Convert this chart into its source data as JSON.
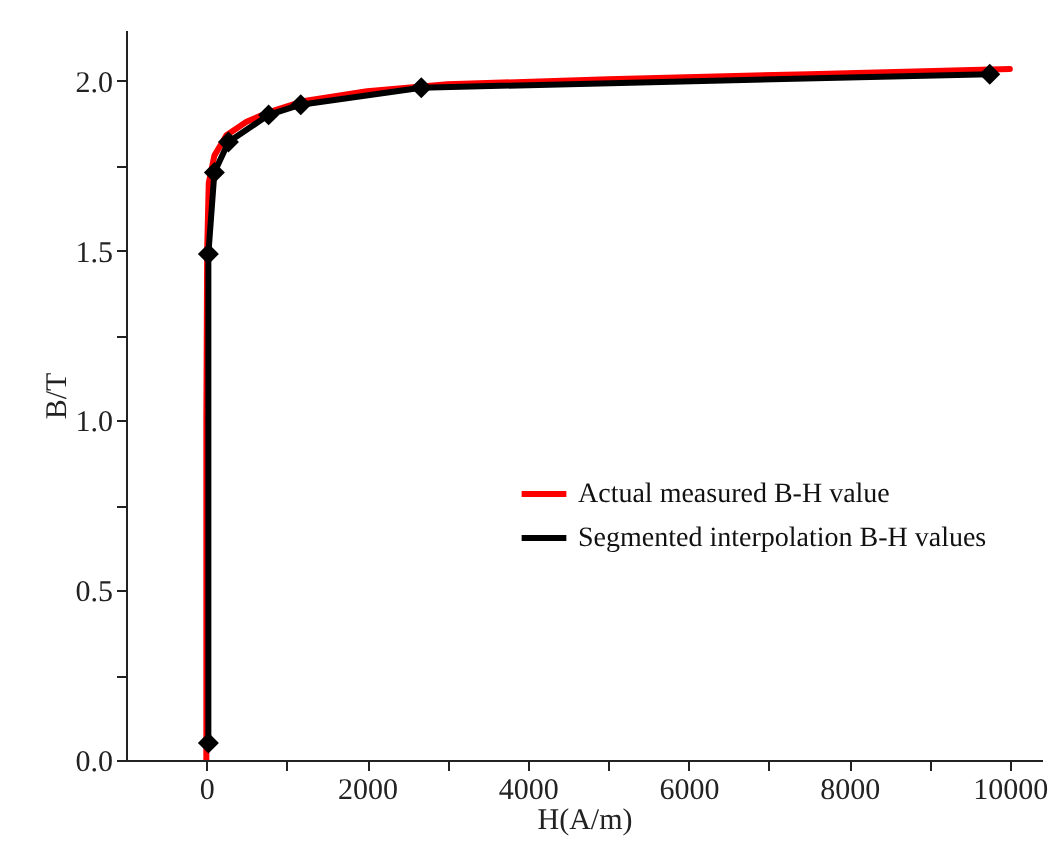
{
  "chart_data": {
    "type": "line",
    "xlabel": "H(A/m)",
    "ylabel": "B/T",
    "xlim": [
      -1000,
      10400
    ],
    "ylim": [
      0,
      2.15
    ],
    "xticks": [
      0,
      {
        "value": 1000,
        "label": null
      },
      2000,
      {
        "value": 3000,
        "label": null
      },
      4000,
      {
        "value": 5000,
        "label": null
      },
      6000,
      {
        "value": 7000,
        "label": null
      },
      8000,
      {
        "value": 9000,
        "label": null
      },
      10000
    ],
    "yticks": [
      {
        "value": 0,
        "label": "0.0"
      },
      {
        "value": 0.25,
        "label": null
      },
      {
        "value": 0.5,
        "label": "0.5"
      },
      {
        "value": 0.75,
        "label": null
      },
      {
        "value": 1,
        "label": "1.0"
      },
      {
        "value": 1.25,
        "label": null
      },
      {
        "value": 1.5,
        "label": "1.5"
      },
      {
        "value": 1.75,
        "label": null
      },
      {
        "value": 2,
        "label": "2.0"
      }
    ],
    "grid": false,
    "legend": "right",
    "marker": "diamond",
    "line_style": "solid",
    "series": [
      {
        "name": "Actual measured B-H value",
        "color": "#ff0000",
        "marker": "none",
        "x": [
          0,
          0,
          10,
          30,
          100,
          250,
          500,
          800,
          1200,
          2000,
          3000,
          5000,
          7500,
          10000
        ],
        "values": [
          0,
          1.0,
          1.5,
          1.7,
          1.78,
          1.84,
          1.88,
          1.91,
          1.94,
          1.97,
          1.99,
          2.005,
          2.02,
          2.035
        ]
      },
      {
        "name": "Segmented interpolation B-H values",
        "color": "#000000",
        "x": [
          25,
          25,
          100,
          275,
          775,
          1175,
          2675,
          9750
        ],
        "values": [
          0.05,
          1.49,
          1.73,
          1.82,
          1.9,
          1.93,
          1.98,
          2.02
        ]
      }
    ]
  }
}
